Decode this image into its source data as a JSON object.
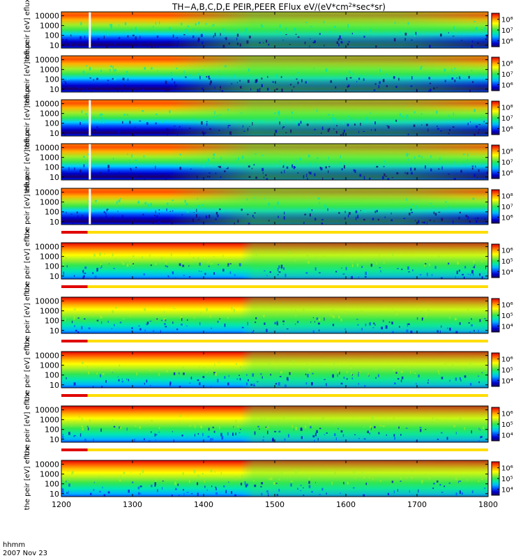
{
  "chart_data": {
    "type": "heatmap",
    "title": "TH-A,B,C,D,E PEIR,PEER EFlux eV/(eV*cm^2*sec*sr)",
    "title_parts": {
      "main": "TH−A,B,C,D,E PEIR,PEER EFlux eV/(eV*cm",
      "sup": "2",
      "tail": "*sec*sr)"
    },
    "xlabel": "hhmm",
    "date_label": "2007 Nov 23",
    "xlim": [
      1200,
      1800
    ],
    "x_ticks": [
      1200,
      1300,
      1400,
      1500,
      1600,
      1700,
      1800
    ],
    "y_ticks": [
      "10",
      "100",
      "1000",
      "10000"
    ],
    "y_scale": "log",
    "ylim": [
      5,
      25000
    ],
    "quality_bar": {
      "red_segment": [
        1200,
        1237
      ],
      "yellow_segment": [
        1237,
        1800
      ]
    },
    "panels": [
      {
        "species": "ion",
        "probe": "A",
        "ylabel": "the peir [eV] eflux",
        "cb_ticks": [
          "10⁶",
          "10⁷",
          "10⁸"
        ],
        "gap_at": 1240,
        "has_quality_bar": false
      },
      {
        "species": "ion",
        "probe": "B",
        "ylabel": "the peir [eV] eflux",
        "cb_ticks": [
          "10⁶",
          "10⁷",
          "10⁸"
        ],
        "gap_at": null,
        "has_quality_bar": false
      },
      {
        "species": "ion",
        "probe": "C",
        "ylabel": "the peir [eV] eflux",
        "cb_ticks": [
          "10⁶",
          "10⁷",
          "10⁸"
        ],
        "gap_at": 1240,
        "has_quality_bar": false
      },
      {
        "species": "ion",
        "probe": "D",
        "ylabel": "the peir [eV] eflux",
        "cb_ticks": [
          "10⁶",
          "10⁷",
          "10⁸"
        ],
        "gap_at": 1240,
        "has_quality_bar": false
      },
      {
        "species": "ion",
        "probe": "E",
        "ylabel": "the peir [eV] eflux",
        "cb_ticks": [
          "10⁶",
          "10⁷",
          "10⁸"
        ],
        "gap_at": 1240,
        "has_quality_bar": true
      },
      {
        "species": "electron",
        "probe": "A",
        "ylabel": "the peir [eV] eflux",
        "cb_ticks": [
          "10⁴",
          "10⁵",
          "10⁶"
        ],
        "gap_at": null,
        "has_quality_bar": true
      },
      {
        "species": "electron",
        "probe": "B",
        "ylabel": "the peir [eV] eflux",
        "cb_ticks": [
          "10⁴",
          "10⁵",
          "10⁶"
        ],
        "gap_at": null,
        "has_quality_bar": true
      },
      {
        "species": "electron",
        "probe": "C",
        "ylabel": "the peir [eV] eflux",
        "cb_ticks": [
          "10⁴",
          "10⁵",
          "10⁶"
        ],
        "gap_at": null,
        "has_quality_bar": true
      },
      {
        "species": "electron",
        "probe": "D",
        "ylabel": "the peir [eV] eflux",
        "cb_ticks": [
          "10⁴",
          "10⁵",
          "10⁶"
        ],
        "gap_at": null,
        "has_quality_bar": true
      },
      {
        "species": "electron",
        "probe": "E",
        "ylabel": "the peir [eV] eflux",
        "cb_ticks": [
          "10⁴",
          "10⁵",
          "10⁶"
        ],
        "gap_at": null,
        "has_quality_bar": false
      }
    ],
    "colormap": [
      "#1a0066",
      "#0000cc",
      "#0050ff",
      "#00b4ff",
      "#00e6b4",
      "#32e650",
      "#a0ee28",
      "#ffff00",
      "#ffb400",
      "#ff5000",
      "#dc0000"
    ]
  }
}
